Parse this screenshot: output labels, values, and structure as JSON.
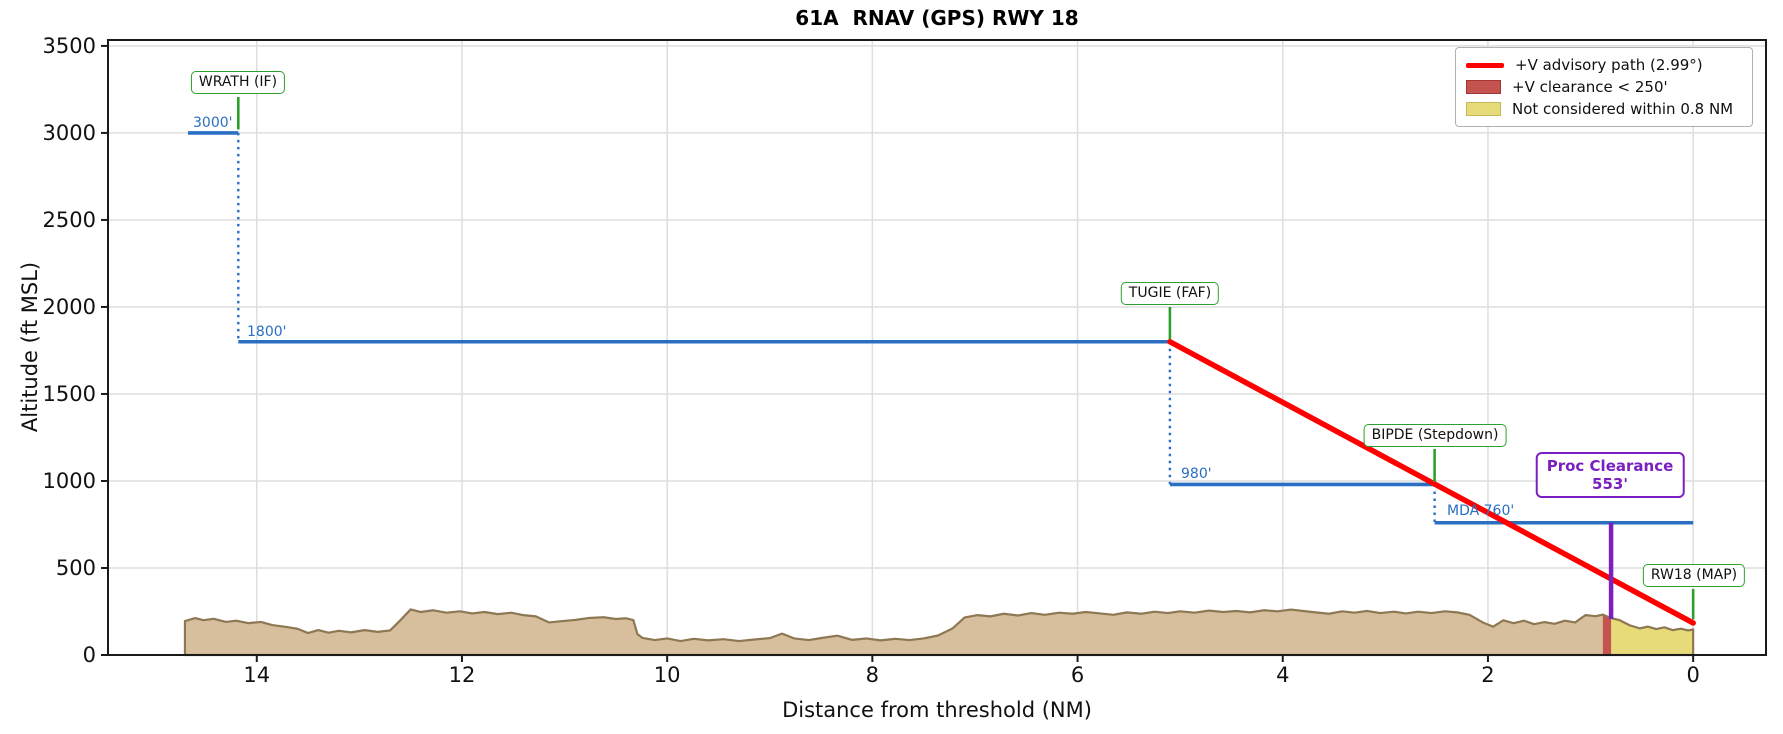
{
  "title": "61A  RNAV (GPS) RWY 18",
  "colors": {
    "blue": "#2a6fc2",
    "green": "#2ca02c",
    "red": "#ff0000",
    "purple": "#7a1fc0",
    "clearance_fill": "#c4524f",
    "clearance_edge": "#a03734",
    "yellow_fill": "#e7db79",
    "yellow_edge": "#c3b75c",
    "terrain_fill": "#d7bf9d",
    "terrain_edge": "#8d7853",
    "grid": "#dedede",
    "spine": "#1a1a1a"
  },
  "legend": {
    "items": [
      {
        "swatch": "line"
      },
      {
        "swatch": "patch-red"
      },
      {
        "swatch": "patch-yellow"
      }
    ]
  },
  "chart_data": {
    "type": "line",
    "title": "61A  RNAV (GPS) RWY 18",
    "xlabel": "Distance from threshold (NM)",
    "ylabel": "Altitude (ft MSL)",
    "x_axis": {
      "min": -0.71,
      "max": 15.45,
      "reversed": true,
      "ticks": [
        14,
        12,
        10,
        8,
        6,
        4,
        2,
        0
      ]
    },
    "y_axis": {
      "min": 0,
      "max": 3534,
      "ticks": [
        0,
        500,
        1000,
        1500,
        2000,
        2500,
        3000,
        3500
      ]
    },
    "segments": [
      {
        "id": "seg3000",
        "label": "3000'",
        "alt_ft": 3000,
        "from_nm": 14.67,
        "to_nm": 14.18
      },
      {
        "id": "seg1800",
        "label": "1800'",
        "alt_ft": 1800,
        "from_nm": 14.18,
        "to_nm": 5.1
      },
      {
        "id": "seg980",
        "label": "980'",
        "alt_ft": 980,
        "from_nm": 5.1,
        "to_nm": 2.52
      },
      {
        "id": "segmda",
        "label": "MDA 760'",
        "alt_ft": 760,
        "from_nm": 2.52,
        "to_nm": 0.0
      }
    ],
    "connectors": [
      {
        "nm": 14.18,
        "from_ft": 3000,
        "to_ft": 1800
      },
      {
        "nm": 5.1,
        "from_ft": 1800,
        "to_ft": 980
      },
      {
        "nm": 2.52,
        "from_ft": 980,
        "to_ft": 760
      }
    ],
    "waypoints": [
      {
        "id": "wrath",
        "label": "WRATH (IF)",
        "nm": 14.18,
        "ft": 3000
      },
      {
        "id": "tugie",
        "label": "TUGIE (FAF)",
        "nm": 5.1,
        "ft": 1800
      },
      {
        "id": "bipde",
        "label": "BIPDE (Stepdown)",
        "nm": 2.52,
        "ft": 980
      },
      {
        "id": "rw18",
        "label": "RW18 (MAP)",
        "nm": 0.0,
        "ft": 200
      }
    ],
    "advisory_path": {
      "label": "+V advisory path (2.99°)",
      "angle_deg": 2.99,
      "from": {
        "nm": 5.1,
        "ft": 1800
      },
      "to": {
        "nm": 0.0,
        "ft": 184
      }
    },
    "clearance_strip": {
      "label": "+V clearance < 250'",
      "from_nm": 0.88,
      "to_nm": 0.8
    },
    "not_considered": {
      "label": "Not considered within 0.8 NM",
      "from_nm": 0.8,
      "to_nm": 0.0
    },
    "proc_clearance": {
      "line1": "Proc Clearance",
      "line2": "553'",
      "nm": 0.8,
      "top_ft": 760,
      "bottom_ft": 207,
      "clearance_ft": 553
    },
    "terrain": [
      [
        14.7,
        195
      ],
      [
        14.6,
        212
      ],
      [
        14.52,
        200
      ],
      [
        14.42,
        208
      ],
      [
        14.3,
        190
      ],
      [
        14.2,
        197
      ],
      [
        14.08,
        183
      ],
      [
        13.96,
        190
      ],
      [
        13.85,
        172
      ],
      [
        13.72,
        162
      ],
      [
        13.6,
        150
      ],
      [
        13.5,
        126
      ],
      [
        13.4,
        143
      ],
      [
        13.3,
        128
      ],
      [
        13.2,
        139
      ],
      [
        13.08,
        130
      ],
      [
        12.95,
        143
      ],
      [
        12.82,
        133
      ],
      [
        12.7,
        141
      ],
      [
        12.6,
        200
      ],
      [
        12.5,
        262
      ],
      [
        12.4,
        247
      ],
      [
        12.28,
        257
      ],
      [
        12.15,
        243
      ],
      [
        12.02,
        251
      ],
      [
        11.9,
        239
      ],
      [
        11.78,
        247
      ],
      [
        11.65,
        235
      ],
      [
        11.52,
        243
      ],
      [
        11.4,
        229
      ],
      [
        11.28,
        222
      ],
      [
        11.15,
        187
      ],
      [
        11.02,
        195
      ],
      [
        10.9,
        201
      ],
      [
        10.76,
        213
      ],
      [
        10.62,
        217
      ],
      [
        10.5,
        207
      ],
      [
        10.4,
        211
      ],
      [
        10.33,
        201
      ],
      [
        10.29,
        120
      ],
      [
        10.24,
        98
      ],
      [
        10.12,
        86
      ],
      [
        10.0,
        95
      ],
      [
        9.87,
        80
      ],
      [
        9.74,
        93
      ],
      [
        9.6,
        84
      ],
      [
        9.45,
        91
      ],
      [
        9.3,
        80
      ],
      [
        9.15,
        89
      ],
      [
        9.0,
        97
      ],
      [
        8.88,
        123
      ],
      [
        8.76,
        95
      ],
      [
        8.62,
        86
      ],
      [
        8.48,
        99
      ],
      [
        8.34,
        111
      ],
      [
        8.2,
        87
      ],
      [
        8.06,
        95
      ],
      [
        7.92,
        84
      ],
      [
        7.78,
        93
      ],
      [
        7.64,
        86
      ],
      [
        7.5,
        95
      ],
      [
        7.36,
        112
      ],
      [
        7.22,
        152
      ],
      [
        7.1,
        216
      ],
      [
        6.98,
        229
      ],
      [
        6.85,
        222
      ],
      [
        6.72,
        237
      ],
      [
        6.58,
        227
      ],
      [
        6.45,
        241
      ],
      [
        6.32,
        231
      ],
      [
        6.18,
        243
      ],
      [
        6.05,
        237
      ],
      [
        5.92,
        247
      ],
      [
        5.78,
        239
      ],
      [
        5.65,
        231
      ],
      [
        5.52,
        245
      ],
      [
        5.38,
        237
      ],
      [
        5.25,
        249
      ],
      [
        5.12,
        241
      ],
      [
        5.0,
        251
      ],
      [
        4.86,
        243
      ],
      [
        4.72,
        255
      ],
      [
        4.58,
        247
      ],
      [
        4.45,
        253
      ],
      [
        4.32,
        245
      ],
      [
        4.18,
        257
      ],
      [
        4.05,
        251
      ],
      [
        3.92,
        261
      ],
      [
        3.8,
        253
      ],
      [
        3.68,
        245
      ],
      [
        3.55,
        237
      ],
      [
        3.42,
        251
      ],
      [
        3.3,
        243
      ],
      [
        3.18,
        253
      ],
      [
        3.05,
        241
      ],
      [
        2.92,
        249
      ],
      [
        2.8,
        239
      ],
      [
        2.68,
        249
      ],
      [
        2.55,
        241
      ],
      [
        2.42,
        251
      ],
      [
        2.3,
        245
      ],
      [
        2.18,
        231
      ],
      [
        2.05,
        187
      ],
      [
        1.95,
        163
      ],
      [
        1.85,
        199
      ],
      [
        1.75,
        183
      ],
      [
        1.65,
        197
      ],
      [
        1.55,
        177
      ],
      [
        1.45,
        189
      ],
      [
        1.35,
        179
      ],
      [
        1.25,
        197
      ],
      [
        1.15,
        187
      ],
      [
        1.05,
        229
      ],
      [
        0.95,
        223
      ],
      [
        0.88,
        232
      ],
      [
        0.8,
        212
      ],
      [
        0.72,
        201
      ],
      [
        0.62,
        171
      ],
      [
        0.52,
        153
      ],
      [
        0.44,
        163
      ],
      [
        0.36,
        149
      ],
      [
        0.28,
        159
      ],
      [
        0.2,
        143
      ],
      [
        0.12,
        151
      ],
      [
        0.05,
        141
      ],
      [
        0.0,
        147
      ]
    ]
  }
}
